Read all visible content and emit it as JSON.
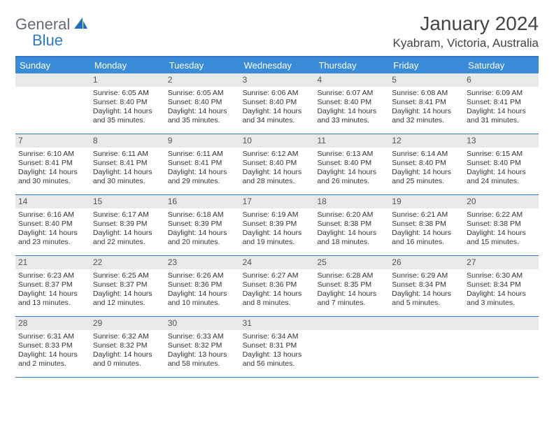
{
  "brand": {
    "word1": "General",
    "word2": "Blue",
    "word1_color": "#5f6b76",
    "word2_color": "#2f78c3",
    "sail_color": "#1f6fbf"
  },
  "title": "January 2024",
  "location": "Kyabram, Victoria, Australia",
  "colors": {
    "header_bg": "#3a8bd8",
    "header_text": "#ffffff",
    "daynum_bg": "#e8e9eb",
    "rule": "#2f78c3",
    "top_rule": "#2f78c3"
  },
  "daysOfWeek": [
    "Sunday",
    "Monday",
    "Tuesday",
    "Wednesday",
    "Thursday",
    "Friday",
    "Saturday"
  ],
  "layout": {
    "leading_blanks": 1,
    "days_in_month": 31
  },
  "days": {
    "1": {
      "sunrise": "6:05 AM",
      "sunset": "8:40 PM",
      "daylight": "14 hours and 35 minutes."
    },
    "2": {
      "sunrise": "6:05 AM",
      "sunset": "8:40 PM",
      "daylight": "14 hours and 35 minutes."
    },
    "3": {
      "sunrise": "6:06 AM",
      "sunset": "8:40 PM",
      "daylight": "14 hours and 34 minutes."
    },
    "4": {
      "sunrise": "6:07 AM",
      "sunset": "8:40 PM",
      "daylight": "14 hours and 33 minutes."
    },
    "5": {
      "sunrise": "6:08 AM",
      "sunset": "8:41 PM",
      "daylight": "14 hours and 32 minutes."
    },
    "6": {
      "sunrise": "6:09 AM",
      "sunset": "8:41 PM",
      "daylight": "14 hours and 31 minutes."
    },
    "7": {
      "sunrise": "6:10 AM",
      "sunset": "8:41 PM",
      "daylight": "14 hours and 30 minutes."
    },
    "8": {
      "sunrise": "6:11 AM",
      "sunset": "8:41 PM",
      "daylight": "14 hours and 30 minutes."
    },
    "9": {
      "sunrise": "6:11 AM",
      "sunset": "8:41 PM",
      "daylight": "14 hours and 29 minutes."
    },
    "10": {
      "sunrise": "6:12 AM",
      "sunset": "8:40 PM",
      "daylight": "14 hours and 28 minutes."
    },
    "11": {
      "sunrise": "6:13 AM",
      "sunset": "8:40 PM",
      "daylight": "14 hours and 26 minutes."
    },
    "12": {
      "sunrise": "6:14 AM",
      "sunset": "8:40 PM",
      "daylight": "14 hours and 25 minutes."
    },
    "13": {
      "sunrise": "6:15 AM",
      "sunset": "8:40 PM",
      "daylight": "14 hours and 24 minutes."
    },
    "14": {
      "sunrise": "6:16 AM",
      "sunset": "8:40 PM",
      "daylight": "14 hours and 23 minutes."
    },
    "15": {
      "sunrise": "6:17 AM",
      "sunset": "8:39 PM",
      "daylight": "14 hours and 22 minutes."
    },
    "16": {
      "sunrise": "6:18 AM",
      "sunset": "8:39 PM",
      "daylight": "14 hours and 20 minutes."
    },
    "17": {
      "sunrise": "6:19 AM",
      "sunset": "8:39 PM",
      "daylight": "14 hours and 19 minutes."
    },
    "18": {
      "sunrise": "6:20 AM",
      "sunset": "8:38 PM",
      "daylight": "14 hours and 18 minutes."
    },
    "19": {
      "sunrise": "6:21 AM",
      "sunset": "8:38 PM",
      "daylight": "14 hours and 16 minutes."
    },
    "20": {
      "sunrise": "6:22 AM",
      "sunset": "8:38 PM",
      "daylight": "14 hours and 15 minutes."
    },
    "21": {
      "sunrise": "6:23 AM",
      "sunset": "8:37 PM",
      "daylight": "14 hours and 13 minutes."
    },
    "22": {
      "sunrise": "6:25 AM",
      "sunset": "8:37 PM",
      "daylight": "14 hours and 12 minutes."
    },
    "23": {
      "sunrise": "6:26 AM",
      "sunset": "8:36 PM",
      "daylight": "14 hours and 10 minutes."
    },
    "24": {
      "sunrise": "6:27 AM",
      "sunset": "8:36 PM",
      "daylight": "14 hours and 8 minutes."
    },
    "25": {
      "sunrise": "6:28 AM",
      "sunset": "8:35 PM",
      "daylight": "14 hours and 7 minutes."
    },
    "26": {
      "sunrise": "6:29 AM",
      "sunset": "8:34 PM",
      "daylight": "14 hours and 5 minutes."
    },
    "27": {
      "sunrise": "6:30 AM",
      "sunset": "8:34 PM",
      "daylight": "14 hours and 3 minutes."
    },
    "28": {
      "sunrise": "6:31 AM",
      "sunset": "8:33 PM",
      "daylight": "14 hours and 2 minutes."
    },
    "29": {
      "sunrise": "6:32 AM",
      "sunset": "8:32 PM",
      "daylight": "14 hours and 0 minutes."
    },
    "30": {
      "sunrise": "6:33 AM",
      "sunset": "8:32 PM",
      "daylight": "13 hours and 58 minutes."
    },
    "31": {
      "sunrise": "6:34 AM",
      "sunset": "8:31 PM",
      "daylight": "13 hours and 56 minutes."
    }
  },
  "labels": {
    "sunrise": "Sunrise:",
    "sunset": "Sunset:",
    "daylight": "Daylight:"
  }
}
